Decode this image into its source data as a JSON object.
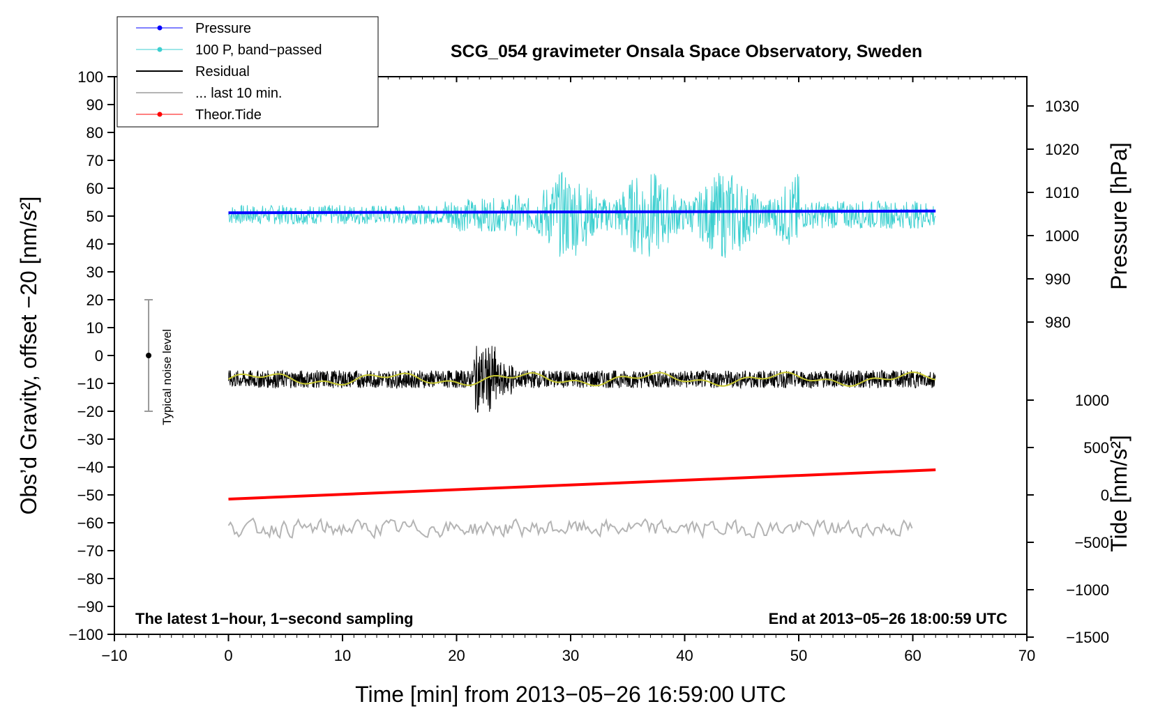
{
  "chart_data": {
    "type": "line",
    "title": "SCG_054 gravimeter Onsala Space Observatory, Sweden",
    "xlabel": "Time [min] from 2013−05−26 16:59:00 UTC",
    "ylabel_left": "Obs’d Gravity, offset −20 [nm/s²]",
    "ylabel_right_pressure": "Pressure [hPa]",
    "ylabel_right_tide": "Tide [nm/s²]",
    "xlim": [
      -10,
      70
    ],
    "ylim_left": [
      -100,
      100
    ],
    "x_ticks": [
      "−10",
      "0",
      "10",
      "20",
      "30",
      "40",
      "50",
      "60",
      "70"
    ],
    "y_ticks_left": [
      "100",
      "90",
      "80",
      "70",
      "60",
      "50",
      "40",
      "30",
      "20",
      "10",
      "0",
      "−10",
      "−20",
      "−30",
      "−40",
      "−50",
      "−60",
      "−70",
      "−80",
      "−90",
      "−100"
    ],
    "pressure_ticks": [
      "1030",
      "1020",
      "1010",
      "1000",
      "990",
      "980"
    ],
    "tide_ticks": [
      "1000",
      "500",
      "0",
      "−500",
      "−1000",
      "−1500"
    ],
    "grid": false,
    "legend_position": "top-left",
    "annotation_left": "The latest 1−hour, 1−second sampling",
    "annotation_right": "End at 2013−05−26 18:00:59 UTC",
    "noise_label": "Typical noise level",
    "noise_bar": {
      "x": -7,
      "center": 0,
      "low": -20,
      "high": 20
    },
    "legend": [
      {
        "name": "Pressure",
        "color": "#0000ff",
        "marker": true
      },
      {
        "name": "100 P, band−passed",
        "color": "#3ccfd0",
        "marker": true
      },
      {
        "name": "Residual",
        "color": "#000000",
        "marker": false
      },
      {
        "name": "... last 10 min.",
        "color": "#b4b4b4",
        "marker": false
      },
      {
        "name": "Theor.Tide",
        "color": "#ff0000",
        "marker": true
      }
    ],
    "series": [
      {
        "name": "Pressure",
        "color": "#0000ff",
        "x": [
          0,
          62
        ],
        "y": [
          51.2,
          51.8
        ]
      },
      {
        "name": "100 P, band−passed",
        "color": "#3ccfd0",
        "x_range": [
          0,
          62
        ],
        "center": 50.5,
        "amplitude_range": [
          2,
          25
        ]
      },
      {
        "name": "Residual",
        "color": "#000000",
        "x_range": [
          0,
          62
        ],
        "center": -8.5,
        "amplitude_range": [
          -25,
          3
        ]
      },
      {
        "name": "... last 10 min.",
        "color": "#b4b4b4",
        "x_range": [
          0,
          60
        ],
        "center": -62,
        "amplitude_range": [
          -68,
          -57
        ]
      },
      {
        "name": "Theor.Tide",
        "color": "#ff0000",
        "x": [
          0,
          62
        ],
        "y": [
          -51.5,
          -41
        ]
      }
    ]
  }
}
